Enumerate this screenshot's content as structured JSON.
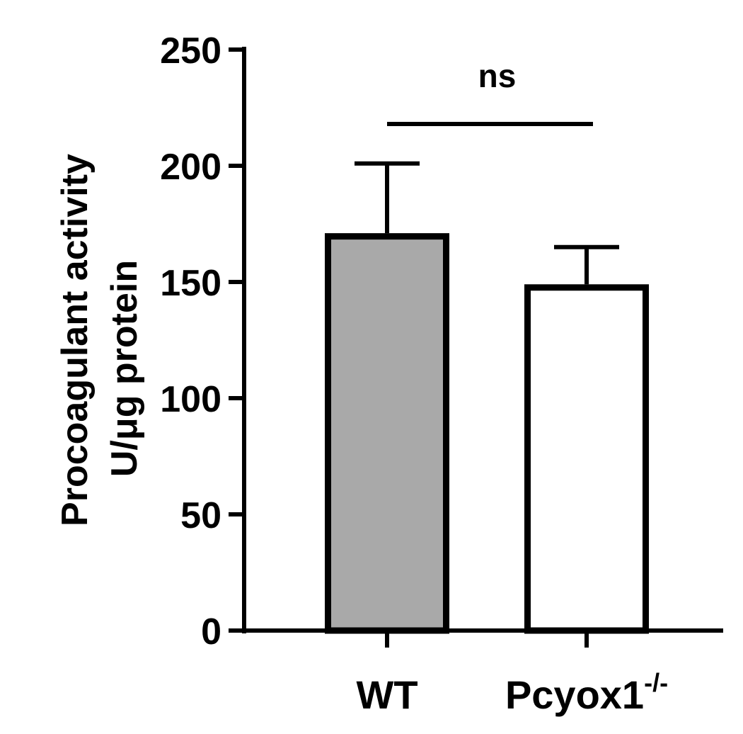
{
  "chart_data": {
    "type": "bar",
    "title": "",
    "xlabel": "",
    "ylabel_lines": [
      "Procoagulant activity",
      "U/μg protein"
    ],
    "ylim": [
      0,
      250
    ],
    "y_ticks": [
      0,
      50,
      100,
      150,
      200,
      250
    ],
    "categories": [
      {
        "base": "WT",
        "sup": ""
      },
      {
        "base": "Pcyox1",
        "sup": "-/-"
      }
    ],
    "values": [
      171,
      149
    ],
    "error_upper": [
      201,
      165
    ],
    "bar_fill": [
      "#a9a9a9",
      "#ffffff"
    ],
    "bar_stroke": "#000000",
    "grid": false,
    "legend": "none",
    "significance": {
      "between": [
        0,
        1
      ],
      "label": "ns",
      "y": 218
    }
  }
}
